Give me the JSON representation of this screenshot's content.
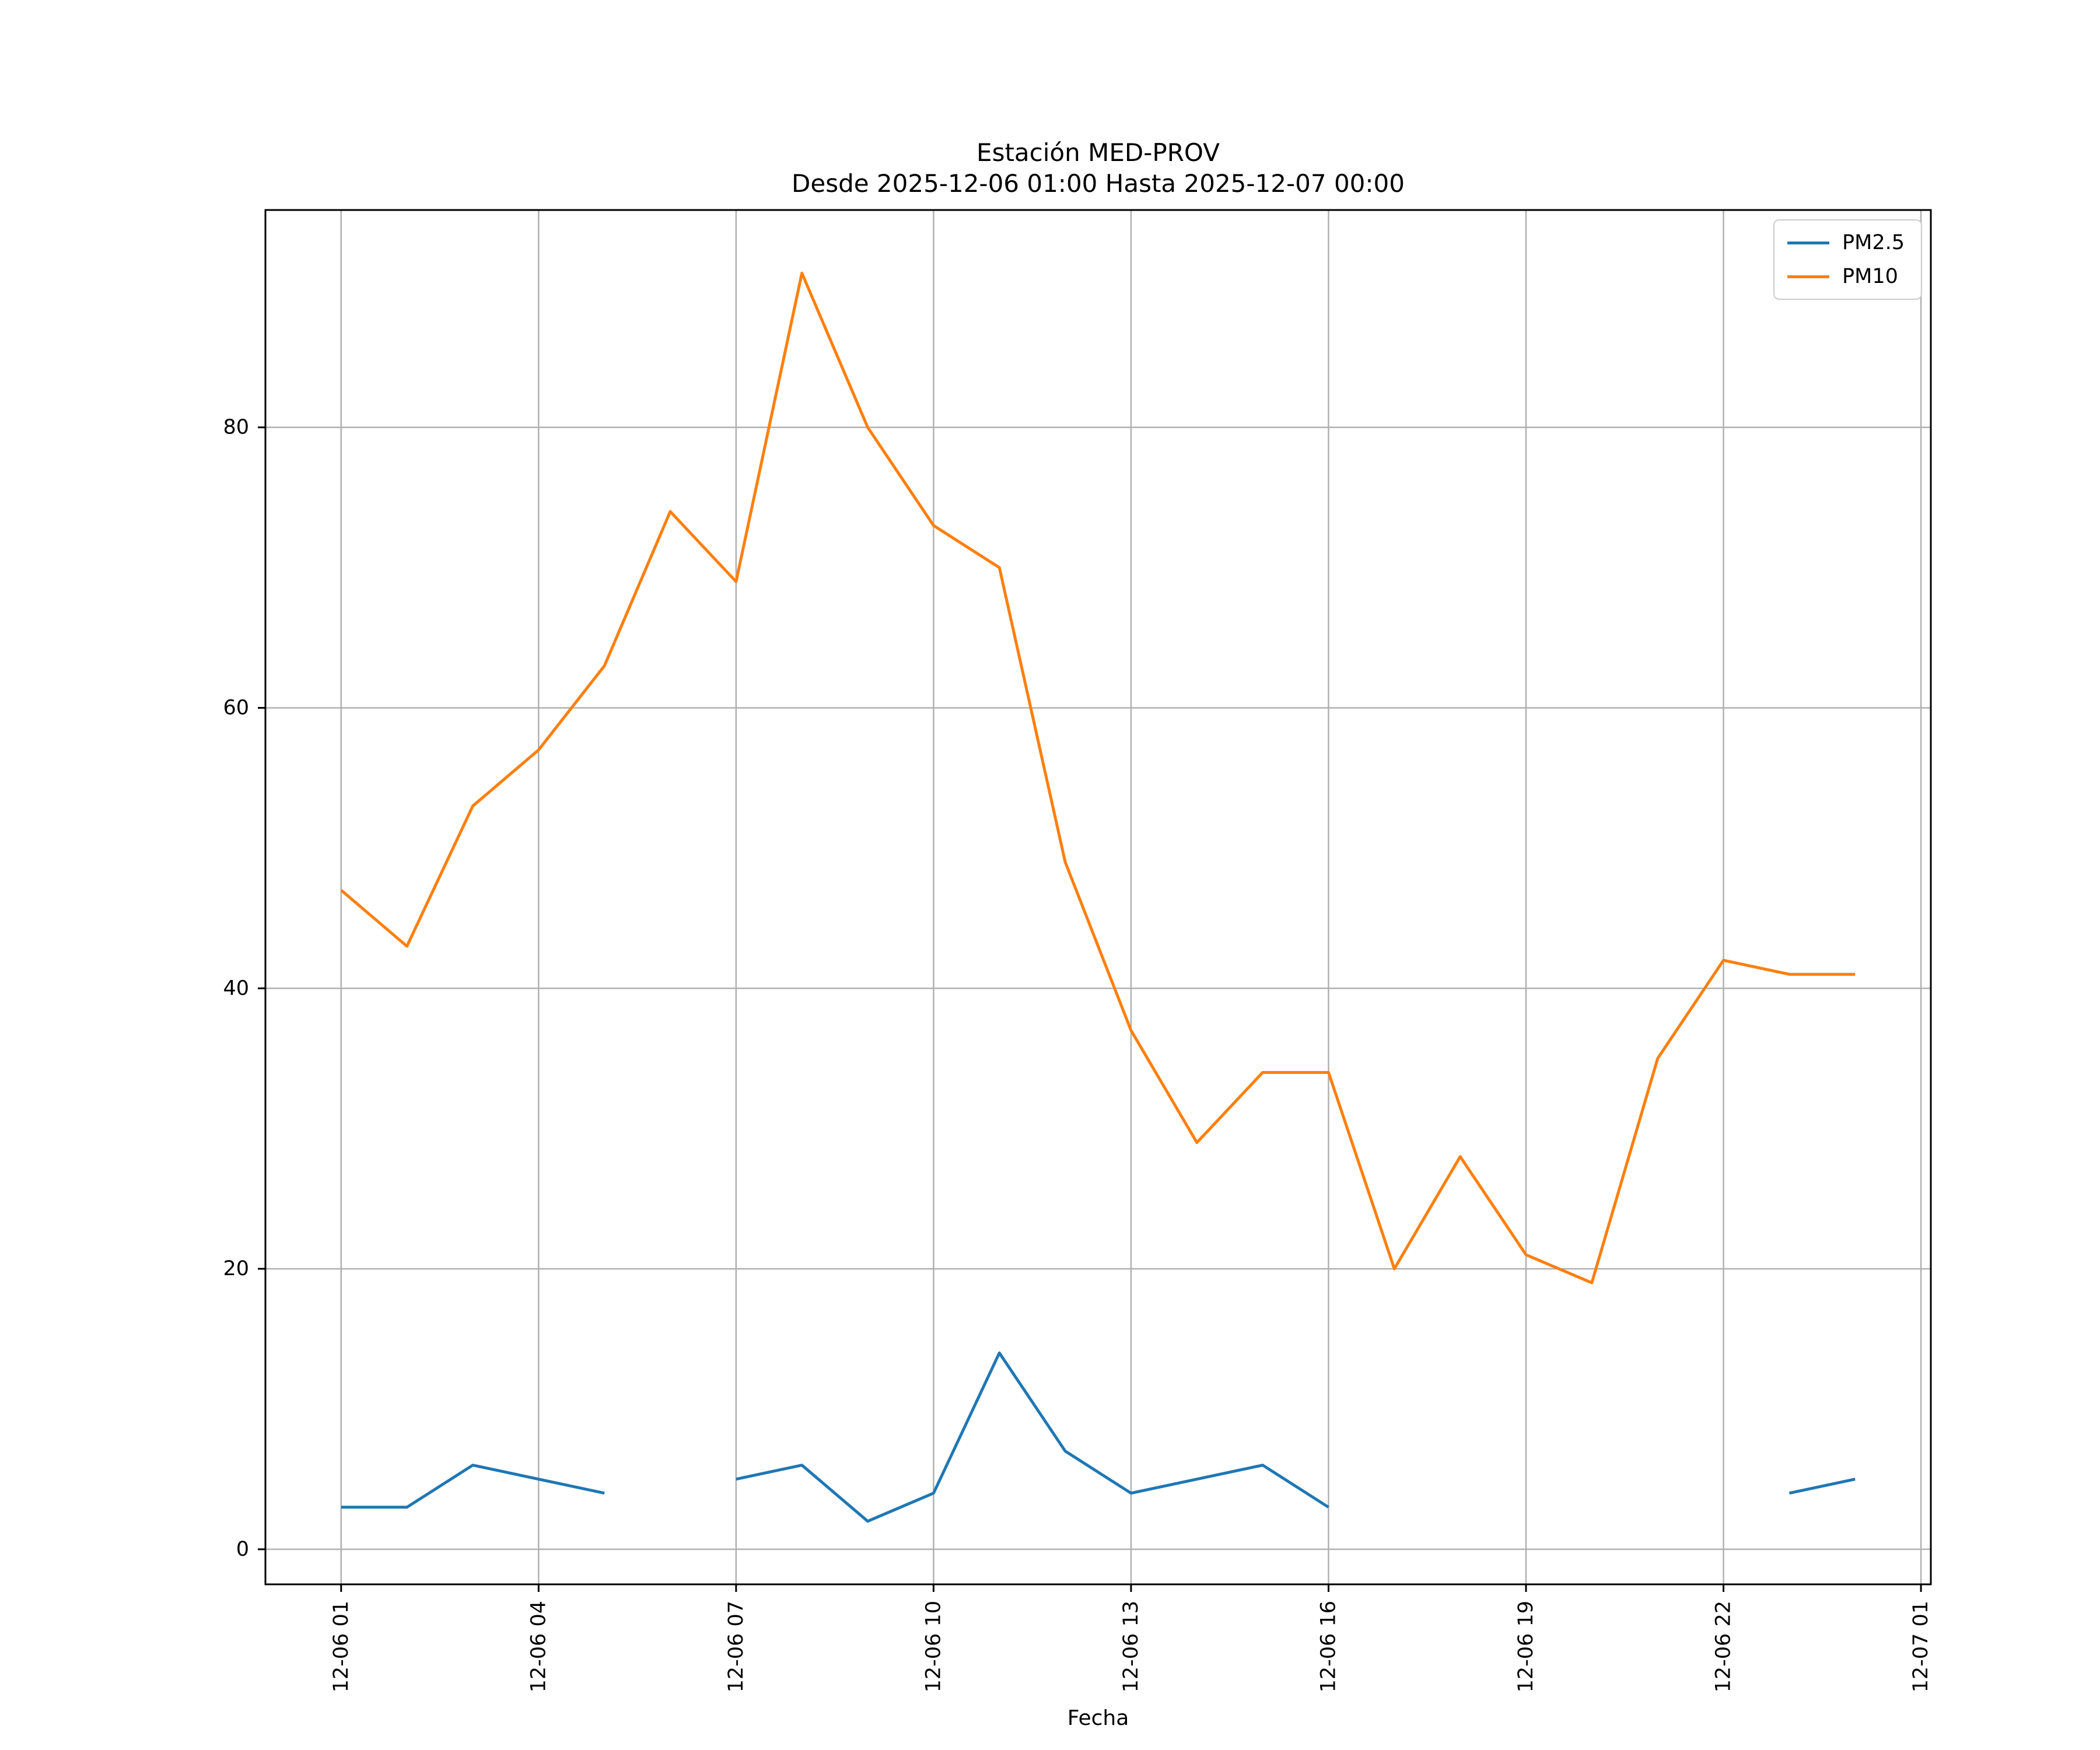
{
  "chart_data": {
    "type": "line",
    "title_lines": [
      "Estación MED-PROV",
      "Desde 2025-12-06 01:00 Hasta 2025-12-07 00:00"
    ],
    "xlabel": "Fecha",
    "ylabel": "",
    "x_hours": [
      1,
      2,
      3,
      4,
      5,
      6,
      7,
      8,
      9,
      10,
      11,
      12,
      13,
      14,
      15,
      16,
      17,
      18,
      19,
      20,
      21,
      22,
      23,
      24
    ],
    "series": [
      {
        "name": "PM2.5",
        "color": "#1f77b4",
        "values": [
          3,
          3,
          6,
          5,
          4,
          null,
          5,
          6,
          2,
          4,
          14,
          7,
          4,
          5,
          6,
          3,
          null,
          null,
          null,
          null,
          null,
          null,
          4,
          5
        ]
      },
      {
        "name": "PM10",
        "color": "#ff7f0e",
        "values": [
          47,
          43,
          53,
          57,
          63,
          74,
          69,
          91,
          80,
          73,
          70,
          49,
          37,
          29,
          34,
          34,
          20,
          28,
          21,
          19,
          35,
          42,
          41,
          41
        ]
      }
    ],
    "x_ticks": [
      {
        "hour": 1,
        "label": "12-06 01"
      },
      {
        "hour": 4,
        "label": "12-06 04"
      },
      {
        "hour": 7,
        "label": "12-06 07"
      },
      {
        "hour": 10,
        "label": "12-06 10"
      },
      {
        "hour": 13,
        "label": "12-06 13"
      },
      {
        "hour": 16,
        "label": "12-06 16"
      },
      {
        "hour": 19,
        "label": "12-06 19"
      },
      {
        "hour": 22,
        "label": "12-06 22"
      },
      {
        "hour": 25,
        "label": "12-07 01"
      }
    ],
    "y_ticks": [
      0,
      20,
      40,
      60,
      80
    ],
    "xlim": [
      -0.15,
      25.15
    ],
    "ylim": [
      -2.5,
      95.5
    ],
    "grid": true,
    "grid_color": "#b0b0b0",
    "axis_color": "#000000",
    "legend_position": "upper right"
  }
}
